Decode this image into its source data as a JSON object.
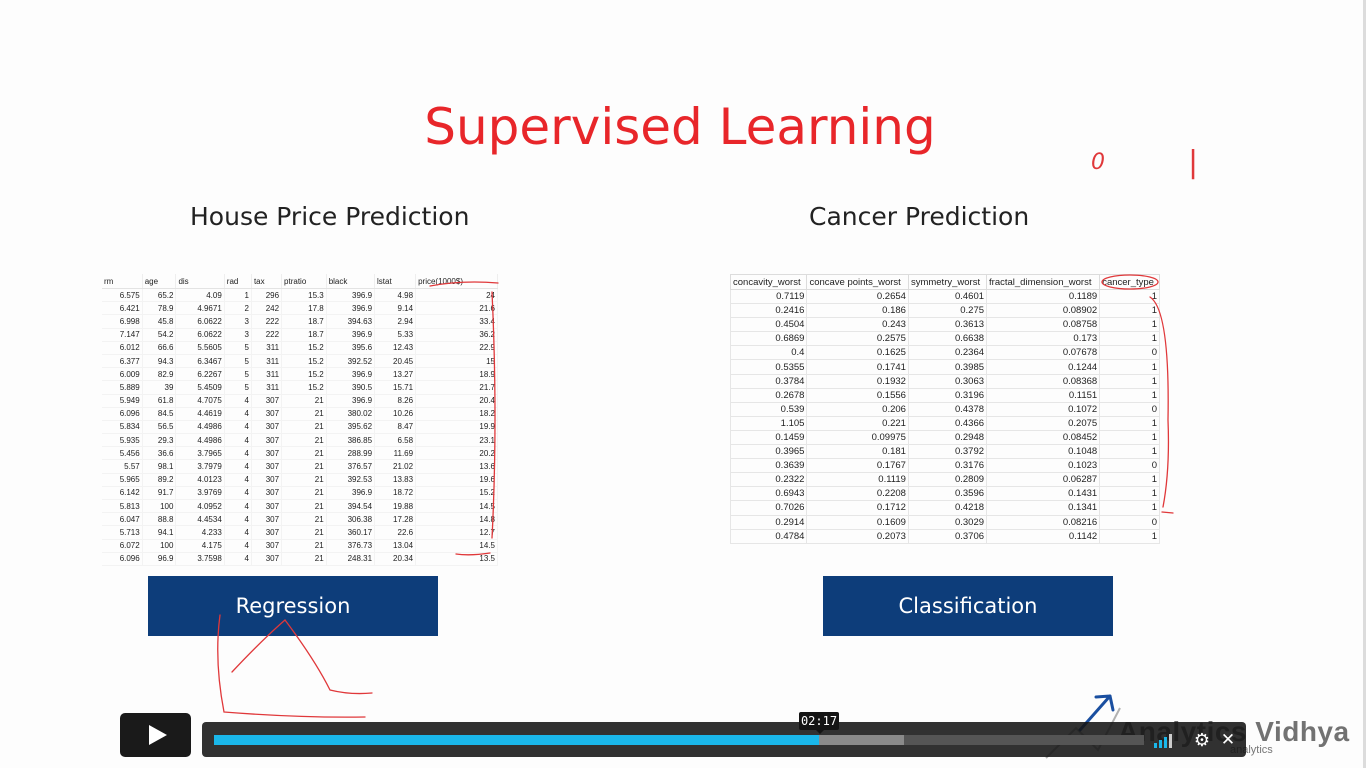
{
  "slide": {
    "title": "Supervised Learning",
    "left_heading": "House Price Prediction",
    "right_heading": "Cancer Prediction",
    "left_button": "Regression",
    "right_button": "Classification",
    "annotation_zero": "0",
    "annotation_one": "|"
  },
  "house_table": {
    "headers": [
      "rm",
      "age",
      "dis",
      "rad",
      "tax",
      "ptratio",
      "black",
      "lstat",
      "price(1000$)"
    ],
    "rows": [
      [
        "6.575",
        "65.2",
        "4.09",
        "1",
        "296",
        "15.3",
        "396.9",
        "4.98",
        "24"
      ],
      [
        "6.421",
        "78.9",
        "4.9671",
        "2",
        "242",
        "17.8",
        "396.9",
        "9.14",
        "21.6"
      ],
      [
        "6.998",
        "45.8",
        "6.0622",
        "3",
        "222",
        "18.7",
        "394.63",
        "2.94",
        "33.4"
      ],
      [
        "7.147",
        "54.2",
        "6.0622",
        "3",
        "222",
        "18.7",
        "396.9",
        "5.33",
        "36.2"
      ],
      [
        "6.012",
        "66.6",
        "5.5605",
        "5",
        "311",
        "15.2",
        "395.6",
        "12.43",
        "22.9"
      ],
      [
        "6.377",
        "94.3",
        "6.3467",
        "5",
        "311",
        "15.2",
        "392.52",
        "20.45",
        "15"
      ],
      [
        "6.009",
        "82.9",
        "6.2267",
        "5",
        "311",
        "15.2",
        "396.9",
        "13.27",
        "18.9"
      ],
      [
        "5.889",
        "39",
        "5.4509",
        "5",
        "311",
        "15.2",
        "390.5",
        "15.71",
        "21.7"
      ],
      [
        "5.949",
        "61.8",
        "4.7075",
        "4",
        "307",
        "21",
        "396.9",
        "8.26",
        "20.4"
      ],
      [
        "6.096",
        "84.5",
        "4.4619",
        "4",
        "307",
        "21",
        "380.02",
        "10.26",
        "18.2"
      ],
      [
        "5.834",
        "56.5",
        "4.4986",
        "4",
        "307",
        "21",
        "395.62",
        "8.47",
        "19.9"
      ],
      [
        "5.935",
        "29.3",
        "4.4986",
        "4",
        "307",
        "21",
        "386.85",
        "6.58",
        "23.1"
      ],
      [
        "5.456",
        "36.6",
        "3.7965",
        "4",
        "307",
        "21",
        "288.99",
        "11.69",
        "20.2"
      ],
      [
        "5.57",
        "98.1",
        "3.7979",
        "4",
        "307",
        "21",
        "376.57",
        "21.02",
        "13.6"
      ],
      [
        "5.965",
        "89.2",
        "4.0123",
        "4",
        "307",
        "21",
        "392.53",
        "13.83",
        "19.6"
      ],
      [
        "6.142",
        "91.7",
        "3.9769",
        "4",
        "307",
        "21",
        "396.9",
        "18.72",
        "15.2"
      ],
      [
        "5.813",
        "100",
        "4.0952",
        "4",
        "307",
        "21",
        "394.54",
        "19.88",
        "14.5"
      ],
      [
        "6.047",
        "88.8",
        "4.4534",
        "4",
        "307",
        "21",
        "306.38",
        "17.28",
        "14.8"
      ],
      [
        "5.713",
        "94.1",
        "4.233",
        "4",
        "307",
        "21",
        "360.17",
        "22.6",
        "12.7"
      ],
      [
        "6.072",
        "100",
        "4.175",
        "4",
        "307",
        "21",
        "376.73",
        "13.04",
        "14.5"
      ],
      [
        "6.096",
        "96.9",
        "3.7598",
        "4",
        "307",
        "21",
        "248.31",
        "20.34",
        "13.5"
      ]
    ]
  },
  "cancer_table": {
    "headers": [
      "concavity_worst",
      "concave points_worst",
      "symmetry_worst",
      "fractal_dimension_worst",
      "cancer_type"
    ],
    "rows": [
      [
        "0.7119",
        "0.2654",
        "0.4601",
        "0.1189",
        "1"
      ],
      [
        "0.2416",
        "0.186",
        "0.275",
        "0.08902",
        "1"
      ],
      [
        "0.4504",
        "0.243",
        "0.3613",
        "0.08758",
        "1"
      ],
      [
        "0.6869",
        "0.2575",
        "0.6638",
        "0.173",
        "1"
      ],
      [
        "0.4",
        "0.1625",
        "0.2364",
        "0.07678",
        "0"
      ],
      [
        "0.5355",
        "0.1741",
        "0.3985",
        "0.1244",
        "1"
      ],
      [
        "0.3784",
        "0.1932",
        "0.3063",
        "0.08368",
        "1"
      ],
      [
        "0.2678",
        "0.1556",
        "0.3196",
        "0.1151",
        "1"
      ],
      [
        "0.539",
        "0.206",
        "0.4378",
        "0.1072",
        "0"
      ],
      [
        "1.105",
        "0.221",
        "0.4366",
        "0.2075",
        "1"
      ],
      [
        "0.1459",
        "0.09975",
        "0.2948",
        "0.08452",
        "1"
      ],
      [
        "0.3965",
        "0.181",
        "0.3792",
        "0.1048",
        "1"
      ],
      [
        "0.3639",
        "0.1767",
        "0.3176",
        "0.1023",
        "0"
      ],
      [
        "0.2322",
        "0.1119",
        "0.2809",
        "0.06287",
        "1"
      ],
      [
        "0.6943",
        "0.2208",
        "0.3596",
        "0.1431",
        "1"
      ],
      [
        "0.7026",
        "0.1712",
        "0.4218",
        "0.1341",
        "1"
      ],
      [
        "0.2914",
        "0.1609",
        "0.3029",
        "0.08216",
        "0"
      ],
      [
        "0.4784",
        "0.2073",
        "0.3706",
        "0.1142",
        "1"
      ]
    ]
  },
  "logo": {
    "name": "Analytics Vidhya",
    "tagline": "analytics"
  },
  "player": {
    "current_time": "02:17",
    "progress_fraction": 0.65,
    "buffered_fraction": 0.742,
    "icons": {
      "play": "play-icon",
      "volume": "volume-icon",
      "settings": "gear-icon",
      "fullscreen": "fullscreen-icon"
    },
    "settings_glyph": "⚙",
    "fullscreen_glyph": "✕"
  },
  "colors": {
    "title": "#e8262a",
    "button": "#0d3d7a",
    "ink": "#e0383a",
    "progress": "#1ab7ea"
  }
}
